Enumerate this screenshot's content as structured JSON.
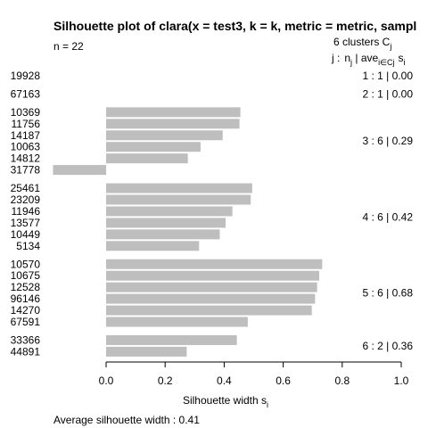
{
  "chart_data": {
    "type": "bar",
    "orientation": "horizontal",
    "title": "Silhouette plot of clara(x = test3, k = k, metric = metric, sampl",
    "n_label": "n = 22",
    "clusters_header": "6  clusters  C",
    "clusters_header_sub": "j",
    "column_header": {
      "j": "j :",
      "n": "n",
      "n_sub": "j",
      "ave": " | ave",
      "ave_sub": "i∈Cj",
      "s": "s",
      "s_sub": "i"
    },
    "xlabel": "Silhouette width s",
    "xlabel_sub": "i",
    "xlim": [
      0,
      1
    ],
    "xticks": [
      "0.0",
      "0.2",
      "0.4",
      "0.6",
      "0.8",
      "1.0"
    ],
    "footer": "Average silhouette width :  0.41",
    "bar_color": "#bebebe",
    "clusters": [
      {
        "label": "1 :  1  |  0.00",
        "items": [
          {
            "id": "19928",
            "value": 0.0
          }
        ]
      },
      {
        "label": "2 :  1  |  0.00",
        "items": [
          {
            "id": "67163",
            "value": 0.0
          }
        ]
      },
      {
        "label": "3 :  6  |  0.29",
        "items": [
          {
            "id": "10369",
            "value": 0.455
          },
          {
            "id": "11756",
            "value": 0.452
          },
          {
            "id": "14187",
            "value": 0.395
          },
          {
            "id": "10063",
            "value": 0.32
          },
          {
            "id": "14812",
            "value": 0.277
          },
          {
            "id": "31778",
            "value": -0.18
          }
        ]
      },
      {
        "label": "4 :  6  |  0.42",
        "items": [
          {
            "id": "25461",
            "value": 0.495
          },
          {
            "id": "23209",
            "value": 0.49
          },
          {
            "id": "11946",
            "value": 0.428
          },
          {
            "id": "13577",
            "value": 0.405
          },
          {
            "id": "10449",
            "value": 0.385
          },
          {
            "id": "5134",
            "value": 0.315
          }
        ]
      },
      {
        "label": "5 :  6  |  0.68",
        "items": [
          {
            "id": "10570",
            "value": 0.732
          },
          {
            "id": "10675",
            "value": 0.722
          },
          {
            "id": "12528",
            "value": 0.715
          },
          {
            "id": "96146",
            "value": 0.708
          },
          {
            "id": "14270",
            "value": 0.697
          },
          {
            "id": "67591",
            "value": 0.48
          }
        ]
      },
      {
        "label": "6 :  2  |  0.36",
        "items": [
          {
            "id": "33366",
            "value": 0.443
          },
          {
            "id": "44891",
            "value": 0.273
          }
        ]
      }
    ]
  }
}
